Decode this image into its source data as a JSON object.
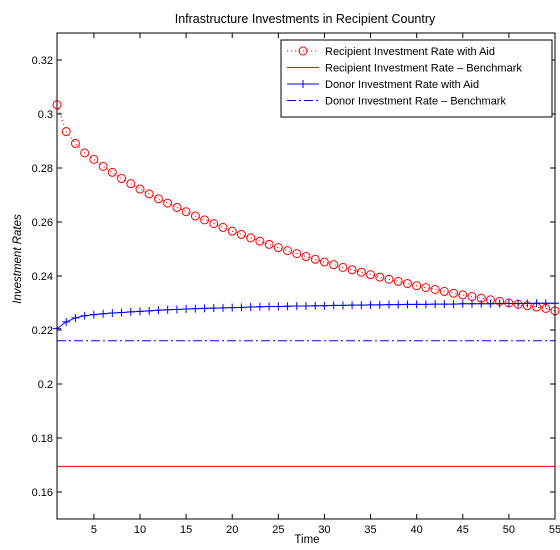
{
  "chart_data": {
    "type": "line",
    "title": "Infrastructure Investments in Recipient Country",
    "xlabel": "Time",
    "ylabel": "Investment Rates",
    "xlim": [
      1,
      55
    ],
    "ylim": [
      0.15,
      0.33
    ],
    "xticks": [
      5,
      10,
      15,
      20,
      25,
      30,
      35,
      40,
      45,
      50,
      55
    ],
    "yticks": [
      0.16,
      0.18,
      0.2,
      0.22,
      0.24,
      0.26,
      0.28,
      0.3,
      0.32
    ],
    "ytick_labels": [
      "0.16",
      "0.18",
      "0.2",
      "0.22",
      "0.24",
      "0.26",
      "0.28",
      "0.3",
      "0.32"
    ],
    "grid": false,
    "legend_position": "top-right",
    "x": [
      1,
      2,
      3,
      4,
      5,
      6,
      7,
      8,
      9,
      10,
      11,
      12,
      13,
      14,
      15,
      16,
      17,
      18,
      19,
      20,
      21,
      22,
      23,
      24,
      25,
      26,
      27,
      28,
      29,
      30,
      31,
      32,
      33,
      34,
      35,
      36,
      37,
      38,
      39,
      40,
      41,
      42,
      43,
      44,
      45,
      46,
      47,
      48,
      49,
      50,
      51,
      52,
      53,
      54,
      55
    ],
    "series": [
      {
        "name": "Recipient Investment Rate with Aid",
        "color": "#ff0000",
        "line_style": "dotted",
        "marker": "circle",
        "values": [
          0.3034,
          0.2935,
          0.2891,
          0.2856,
          0.2832,
          0.2806,
          0.2784,
          0.2761,
          0.2742,
          0.2722,
          0.2704,
          0.2686,
          0.267,
          0.2654,
          0.2638,
          0.2622,
          0.2608,
          0.2594,
          0.258,
          0.2566,
          0.2554,
          0.2541,
          0.2529,
          0.2517,
          0.2505,
          0.2494,
          0.2483,
          0.2472,
          0.2462,
          0.2452,
          0.2442,
          0.2432,
          0.2423,
          0.2414,
          0.2405,
          0.2396,
          0.2388,
          0.238,
          0.2372,
          0.2364,
          0.2357,
          0.235,
          0.2343,
          0.2336,
          0.233,
          0.2324,
          0.2318,
          0.2312,
          0.2306,
          0.23,
          0.2295,
          0.229,
          0.2285,
          0.228,
          0.2271
        ]
      },
      {
        "name": "Recipient Investment Rate – Benchmark",
        "color": "#ff0000",
        "line_style": "solid",
        "marker": "none",
        "values": [
          0.1695,
          0.1695,
          0.1695,
          0.1695,
          0.1695,
          0.1695,
          0.1695,
          0.1695,
          0.1695,
          0.1695,
          0.1695,
          0.1695,
          0.1695,
          0.1695,
          0.1695,
          0.1695,
          0.1695,
          0.1695,
          0.1695,
          0.1695,
          0.1695,
          0.1695,
          0.1695,
          0.1695,
          0.1695,
          0.1695,
          0.1695,
          0.1695,
          0.1695,
          0.1695,
          0.1695,
          0.1695,
          0.1695,
          0.1695,
          0.1695,
          0.1695,
          0.1695,
          0.1695,
          0.1695,
          0.1695,
          0.1695,
          0.1695,
          0.1695,
          0.1695,
          0.1695,
          0.1695,
          0.1695,
          0.1695,
          0.1695,
          0.1695,
          0.1695,
          0.1695,
          0.1695,
          0.1695,
          0.1695
        ]
      },
      {
        "name": "Donor Investment Rate with Aid",
        "color": "#0000ff",
        "line_style": "solid",
        "marker": "plus",
        "values": [
          0.2205,
          0.223,
          0.2245,
          0.2253,
          0.2257,
          0.226,
          0.2263,
          0.2265,
          0.2267,
          0.2269,
          0.2271,
          0.2273,
          0.2275,
          0.2276,
          0.2278,
          0.2279,
          0.228,
          0.2281,
          0.2282,
          0.2283,
          0.2284,
          0.2285,
          0.2286,
          0.2287,
          0.2287,
          0.2288,
          0.2289,
          0.2289,
          0.229,
          0.229,
          0.2291,
          0.2291,
          0.2292,
          0.2292,
          0.2293,
          0.2293,
          0.2294,
          0.2294,
          0.2295,
          0.2295,
          0.2295,
          0.2296,
          0.2296,
          0.2296,
          0.2297,
          0.2297,
          0.2297,
          0.2297,
          0.2298,
          0.2298,
          0.2298,
          0.2298,
          0.2299,
          0.2299,
          0.2299
        ]
      },
      {
        "name": "Donor Investment Rate – Benchmark",
        "color": "#0000ff",
        "line_style": "dashdot",
        "marker": "none",
        "values": [
          0.216,
          0.216,
          0.216,
          0.216,
          0.216,
          0.216,
          0.216,
          0.216,
          0.216,
          0.216,
          0.216,
          0.216,
          0.216,
          0.216,
          0.216,
          0.216,
          0.216,
          0.216,
          0.216,
          0.216,
          0.216,
          0.216,
          0.216,
          0.216,
          0.216,
          0.216,
          0.216,
          0.216,
          0.216,
          0.216,
          0.216,
          0.216,
          0.216,
          0.216,
          0.216,
          0.216,
          0.216,
          0.216,
          0.216,
          0.216,
          0.216,
          0.216,
          0.216,
          0.216,
          0.216,
          0.216,
          0.216,
          0.216,
          0.216,
          0.216,
          0.216,
          0.216,
          0.216,
          0.216,
          0.216
        ]
      }
    ]
  }
}
